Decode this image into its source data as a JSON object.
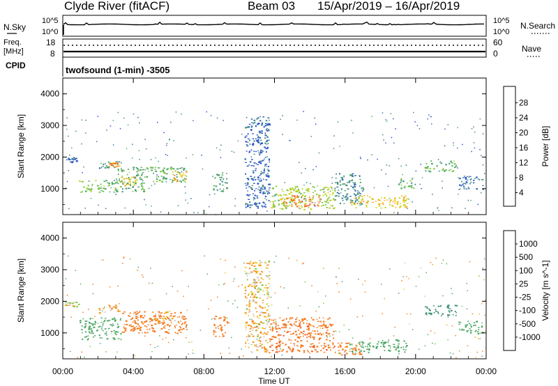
{
  "header": {
    "station": "Clyde River (fitACF)",
    "beam": "Beam 03",
    "dates": "15/Apr/2019 – 16/Apr/2019"
  },
  "top_panels": {
    "nsky_label": "N.Sky",
    "nsky_ticks": [
      "10^5",
      "10^0"
    ],
    "nsearch_label": "N.Search",
    "nsearch_ticks": [
      "10^5",
      "10^0"
    ],
    "freq_label": "Freq.",
    "freq_unit": "[MHz]",
    "freq_ticks": [
      "18",
      "8"
    ],
    "nave_label": "Nave",
    "nave_ticks": [
      "60",
      "0"
    ],
    "cpid_label": "CPID",
    "cpid_text": "twofsound (1-min) -3505"
  },
  "colors": {
    "power_scale": [
      "#0a1cf0",
      "#2a4fd4",
      "#3a6fb0",
      "#3f8f7a",
      "#4faa66",
      "#7cc63e",
      "#c7d72b",
      "#f0c419",
      "#f49d1b",
      "#f47a20",
      "#f05a1f",
      "#e8231b"
    ],
    "velocity_scale": [
      "#e8231b",
      "#f05a1f",
      "#f47a20",
      "#f49d1b",
      "#f0c419",
      "#c8c8c8",
      "#c8c8c8",
      "#7cc63e",
      "#4faa66",
      "#3f8f7a",
      "#2a4fd4",
      "#0a1cf0"
    ]
  },
  "chart_data": [
    {
      "type": "heatmap",
      "parameter": "Power",
      "ylabel": "Slant Range [km]",
      "colorbar_label": "Power [dB]",
      "colorbar_ticks": [
        "28",
        "24",
        "20",
        "16",
        "12",
        "8",
        "4"
      ],
      "value_range": [
        0,
        32
      ],
      "ylim": [
        180,
        4500
      ],
      "yticks": [
        "4000",
        "3000",
        "2000",
        "1000"
      ],
      "xlim_hours": [
        0,
        24
      ],
      "blobs": [
        {
          "t0": 0.1,
          "t1": 0.9,
          "r0": 1850,
          "r1": 2000,
          "v": 6
        },
        {
          "t0": 0.9,
          "t1": 3.0,
          "r0": 900,
          "r1": 1300,
          "v": 14
        },
        {
          "t0": 2.0,
          "t1": 3.2,
          "r0": 1650,
          "r1": 1900,
          "v": 10
        },
        {
          "t0": 2.6,
          "t1": 3.2,
          "r0": 1700,
          "r1": 1850,
          "v": 24
        },
        {
          "t0": 3.0,
          "t1": 4.6,
          "r0": 900,
          "r1": 1700,
          "v": 12
        },
        {
          "t0": 3.2,
          "t1": 4.2,
          "r0": 1100,
          "r1": 1400,
          "v": 20
        },
        {
          "t0": 4.6,
          "t1": 7.0,
          "r0": 1200,
          "r1": 1700,
          "v": 12
        },
        {
          "t0": 6.2,
          "t1": 7.0,
          "r0": 1250,
          "r1": 1550,
          "v": 22
        },
        {
          "t0": 8.5,
          "t1": 9.3,
          "r0": 900,
          "r1": 1550,
          "v": 11
        },
        {
          "t0": 10.3,
          "t1": 11.7,
          "r0": 400,
          "r1": 3300,
          "v": 6
        },
        {
          "t0": 11.7,
          "t1": 15.4,
          "r0": 350,
          "r1": 1100,
          "v": 16
        },
        {
          "t0": 12.5,
          "t1": 14.6,
          "r0": 450,
          "r1": 800,
          "v": 26
        },
        {
          "t0": 15.4,
          "t1": 17.0,
          "r0": 500,
          "r1": 1500,
          "v": 9
        },
        {
          "t0": 16.2,
          "t1": 19.5,
          "r0": 400,
          "r1": 800,
          "v": 20
        },
        {
          "t0": 19.0,
          "t1": 20.0,
          "r0": 1000,
          "r1": 1350,
          "v": 13
        },
        {
          "t0": 20.5,
          "t1": 22.3,
          "r0": 1550,
          "r1": 1900,
          "v": 13
        },
        {
          "t0": 22.3,
          "t1": 23.8,
          "r0": 1000,
          "r1": 1400,
          "v": 7
        }
      ]
    },
    {
      "type": "heatmap",
      "parameter": "Velocity",
      "ylabel": "Slant Range [km]",
      "colorbar_label": "Velocity [m s^-1]",
      "colorbar_ticks": [
        "1000",
        "500",
        "100",
        "25",
        "-25",
        "-100",
        "-500",
        "-1000"
      ],
      "value_range": [
        -1200,
        1200
      ],
      "ylim": [
        180,
        4500
      ],
      "yticks": [
        "4000",
        "3000",
        "2000",
        "1000"
      ],
      "xticks": [
        "00:00",
        "04:00",
        "08:00",
        "12:00",
        "16:00",
        "20:00",
        "00:00"
      ],
      "xlabel": "Time UT",
      "xlim_hours": [
        0,
        24
      ],
      "blobs": [
        {
          "t0": 0.1,
          "t1": 0.9,
          "r0": 1850,
          "r1": 2000,
          "v": 0
        },
        {
          "t0": 0.9,
          "t1": 3.3,
          "r0": 800,
          "r1": 1500,
          "v": 200
        },
        {
          "t0": 2.0,
          "t1": 3.2,
          "r0": 1650,
          "r1": 1900,
          "v": -60
        },
        {
          "t0": 3.3,
          "t1": 7.0,
          "r0": 1000,
          "r1": 1700,
          "v": -200
        },
        {
          "t0": 5.0,
          "t1": 6.4,
          "r0": 1300,
          "r1": 1700,
          "v": -60
        },
        {
          "t0": 8.5,
          "t1": 9.3,
          "r0": 900,
          "r1": 1550,
          "v": -300
        },
        {
          "t0": 10.3,
          "t1": 11.7,
          "r0": 400,
          "r1": 3300,
          "v": -40
        },
        {
          "t0": 11.7,
          "t1": 15.4,
          "r0": 400,
          "r1": 1500,
          "v": -450
        },
        {
          "t0": 16.2,
          "t1": 19.5,
          "r0": 400,
          "r1": 800,
          "v": 300
        },
        {
          "t0": 15.4,
          "t1": 17.0,
          "r0": 300,
          "r1": 700,
          "v": -150
        },
        {
          "t0": 20.5,
          "t1": 22.4,
          "r0": 1550,
          "r1": 1900,
          "v": 900
        },
        {
          "t0": 22.4,
          "t1": 23.8,
          "r0": 1000,
          "r1": 1400,
          "v": 200
        }
      ]
    }
  ]
}
